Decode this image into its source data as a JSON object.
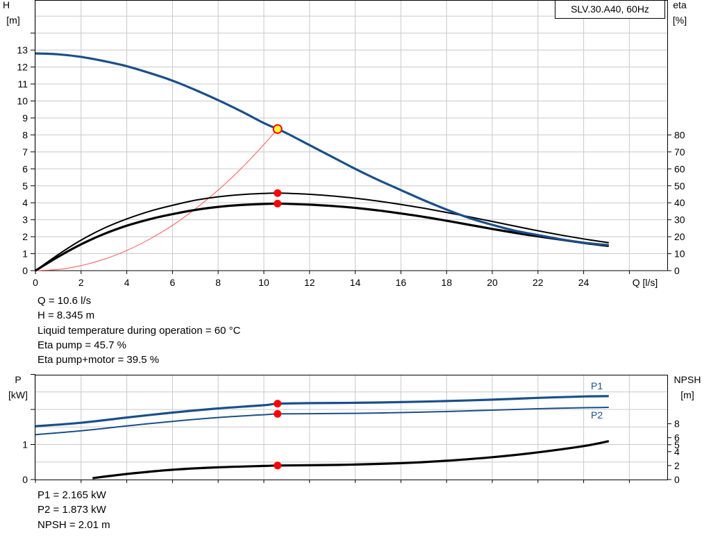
{
  "chart_data": [
    {
      "type": "line",
      "legend_title": "SLV.30.A40, 60Hz",
      "xlabel": "Q [l/s]",
      "ylabel_left": [
        "H",
        "[m]"
      ],
      "ylabel_right": [
        "eta",
        "[%]"
      ],
      "xlim": [
        0,
        26
      ],
      "ylim_left": [
        0,
        14
      ],
      "ylim_right": [
        0,
        140
      ],
      "x_ticks": [
        "0",
        "2",
        "4",
        "6",
        "8",
        "10",
        "12",
        "14",
        "16",
        "18",
        "20",
        "22",
        "24"
      ],
      "y_ticks_left": [
        "0",
        "1",
        "2",
        "3",
        "4",
        "5",
        "6",
        "7",
        "8",
        "9",
        "10",
        "11",
        "12",
        "13"
      ],
      "y_ticks_right": [
        "0",
        "10",
        "20",
        "30",
        "40",
        "50",
        "60",
        "70",
        "80"
      ],
      "grid": true,
      "colors": {
        "head": "#1a4f8a",
        "efficiency": "#000000",
        "system": "#ff5050",
        "op_point": "#ff0000",
        "op_point_head_fill": "#ffff33"
      },
      "series": [
        {
          "key": "head",
          "axis": "left",
          "x": [
            0,
            1,
            2,
            3,
            4,
            5,
            6,
            7,
            8,
            9,
            10,
            10.6,
            11,
            12,
            13,
            14,
            15,
            16,
            17,
            18,
            19,
            20,
            21,
            22,
            23,
            24,
            25.1
          ],
          "y": [
            12.8,
            12.75,
            12.6,
            12.35,
            12.05,
            11.65,
            11.2,
            10.65,
            10.05,
            9.4,
            8.7,
            8.345,
            8.1,
            7.4,
            6.7,
            6.0,
            5.35,
            4.75,
            4.15,
            3.6,
            3.1,
            2.7,
            2.35,
            2.1,
            1.85,
            1.65,
            1.5
          ]
        },
        {
          "key": "eta_pump",
          "axis": "right",
          "x": [
            0,
            1,
            2,
            3,
            4,
            5,
            6,
            7,
            8,
            9,
            10,
            10.6,
            11,
            12,
            13,
            14,
            15,
            16,
            17,
            18,
            19,
            20,
            21,
            22,
            23,
            24,
            25.1
          ],
          "y": [
            0,
            9.5,
            18,
            25,
            30.5,
            35,
            38.5,
            41.5,
            43.5,
            44.8,
            45.5,
            45.7,
            45.6,
            45,
            44,
            42.7,
            41,
            39,
            36.8,
            34.3,
            31.7,
            29,
            26.2,
            23.5,
            21,
            18.7,
            16.5
          ]
        },
        {
          "key": "eta_pump_motor",
          "axis": "right",
          "x": [
            0,
            1,
            2,
            3,
            4,
            5,
            6,
            7,
            8,
            9,
            10,
            10.6,
            11,
            12,
            13,
            14,
            15,
            16,
            17,
            18,
            19,
            20,
            21,
            22,
            23,
            24,
            25.1
          ],
          "y": [
            0,
            8.2,
            15.5,
            21.6,
            26.5,
            30.3,
            33.3,
            35.8,
            37.6,
            38.7,
            39.3,
            39.5,
            39.4,
            38.9,
            38.1,
            37,
            35.5,
            33.7,
            31.7,
            29.4,
            27,
            24.6,
            22.3,
            20.2,
            18.3,
            16.3,
            14.5
          ]
        },
        {
          "key": "system_curve",
          "axis": "left",
          "x": [
            0,
            1,
            2,
            3,
            4,
            5,
            6,
            7,
            8,
            9,
            10,
            10.6
          ],
          "y": [
            0,
            0.07,
            0.3,
            0.67,
            1.19,
            1.86,
            2.67,
            3.64,
            4.75,
            6.01,
            7.43,
            8.345
          ]
        }
      ],
      "operating_point": {
        "x": 10.6,
        "head": 8.345,
        "eta_pump": 45.7,
        "eta_pump_motor": 39.5
      }
    },
    {
      "type": "line",
      "ylabel_left": [
        "P",
        "[kW]"
      ],
      "ylabel_right": [
        "NPSH",
        "[m]"
      ],
      "xlim": [
        0,
        26
      ],
      "ylim_left": [
        0,
        3
      ],
      "ylim_right": [
        0,
        14
      ],
      "y_ticks_left": [
        "0",
        "1"
      ],
      "y_ticks_right": [
        "0",
        "2",
        "4",
        "5",
        "6",
        "8"
      ],
      "grid": true,
      "colors": {
        "p1": "#1a4f8a",
        "p2": "#1a4f8a",
        "npsh": "#000000",
        "op_point": "#ff0000"
      },
      "series": [
        {
          "key": "p1",
          "name": "P1",
          "axis": "left",
          "x": [
            0,
            2,
            4,
            6,
            8,
            10,
            10.6,
            12,
            14,
            16,
            18,
            20,
            22,
            24,
            25.1
          ],
          "y": [
            1.52,
            1.62,
            1.77,
            1.91,
            2.03,
            2.12,
            2.165,
            2.18,
            2.19,
            2.21,
            2.24,
            2.28,
            2.33,
            2.37,
            2.38
          ]
        },
        {
          "key": "p2",
          "name": "P2",
          "axis": "left",
          "x": [
            0,
            2,
            4,
            6,
            8,
            10,
            10.6,
            12,
            14,
            16,
            18,
            20,
            22,
            24,
            25.1
          ],
          "y": [
            1.28,
            1.39,
            1.53,
            1.66,
            1.77,
            1.85,
            1.873,
            1.88,
            1.89,
            1.91,
            1.94,
            1.98,
            2.02,
            2.05,
            2.06
          ]
        },
        {
          "key": "npsh",
          "axis": "right",
          "x": [
            2.5,
            4,
            6,
            8,
            10,
            10.6,
            12,
            14,
            16,
            18,
            20,
            22,
            24,
            25.1
          ],
          "y": [
            0.2,
            0.8,
            1.4,
            1.75,
            1.95,
            2.01,
            2.05,
            2.15,
            2.35,
            2.7,
            3.2,
            3.9,
            4.8,
            5.5
          ]
        }
      ],
      "operating_point": {
        "x": 10.6,
        "p1": 2.165,
        "p2": 1.873,
        "npsh": 2.01
      }
    }
  ],
  "info_top": [
    "Q = 10.6 l/s",
    "H = 8.345 m",
    "Liquid temperature during operation = 60 °C",
    "Eta pump = 45.7 %",
    "Eta pump+motor = 39.5 %"
  ],
  "info_bottom": [
    "P1 = 2.165 kW",
    "P2 = 1.873 kW",
    "NPSH = 2.01 m"
  ]
}
